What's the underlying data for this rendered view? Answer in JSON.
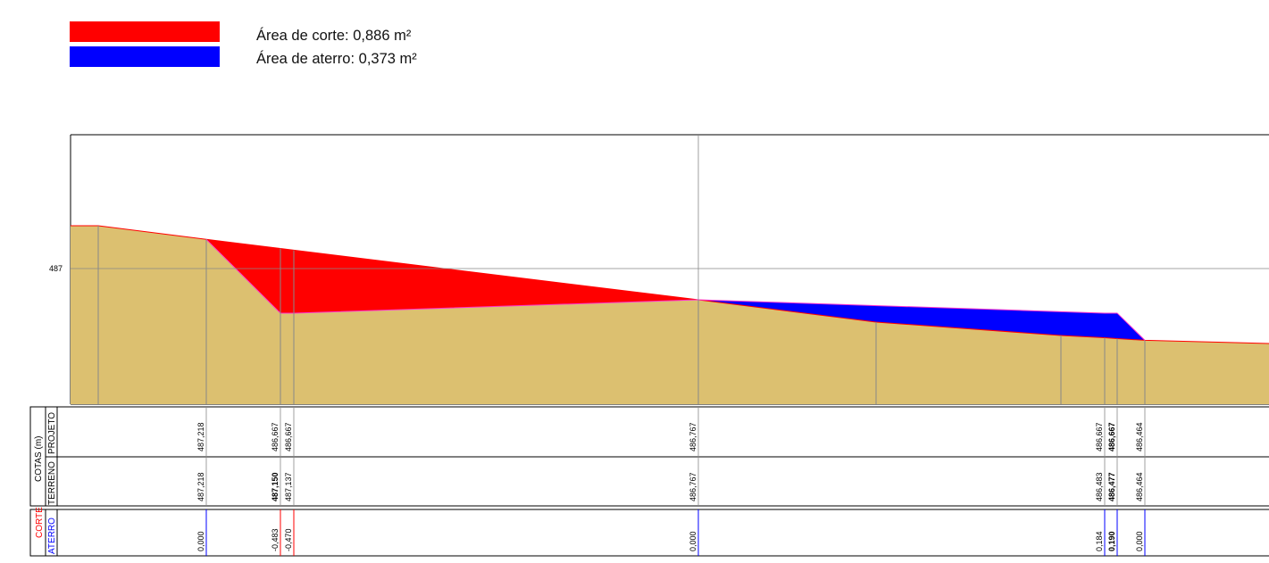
{
  "legend": {
    "corte_label": "Área de corte: 0,886 m²",
    "aterro_label": "Área de aterro: 0,373 m²",
    "corte_color": "#ff0000",
    "aterro_color": "#0000ff"
  },
  "table": {
    "header_group": "COTAS (m)",
    "row_projeto": "PROJETO",
    "row_terreno": "TERRENO",
    "row_corte": "CORTE",
    "row_aterro": "ATERRO"
  },
  "colors": {
    "terrain_fill": "#dcc070",
    "terrain_line": "#ff0000",
    "design_line": "#ff33cc",
    "grid": "#888888"
  },
  "chart_data": {
    "type": "area",
    "title": "",
    "xlabel": "",
    "ylabel": "",
    "ylim": [
      486.0,
      487.32
    ],
    "yticks": [
      "487"
    ],
    "grid": true,
    "legend_position": "top-left",
    "series": [
      {
        "name": "Área de corte: 0,886 m²",
        "color": "#ff0000"
      },
      {
        "name": "Área de aterro: 0,373 m²",
        "color": "#0000ff"
      }
    ],
    "stations": [
      {
        "projeto": "",
        "terreno": "",
        "corte_aterro": "",
        "kind": "none"
      },
      {
        "projeto": "487,218",
        "terreno": "487,218",
        "corte_aterro": "0,000",
        "kind": "aterro"
      },
      {
        "projeto": "486,667",
        "terreno": "487,150",
        "corte_aterro": "-0,483",
        "kind": "corte",
        "bold_terreno": true
      },
      {
        "projeto": "486,667",
        "terreno": "487,137",
        "corte_aterro": "-0,470",
        "kind": "corte"
      },
      {
        "projeto": "486,767",
        "terreno": "486,767",
        "corte_aterro": "0,000",
        "kind": "aterro"
      },
      {
        "projeto": "",
        "terreno": "",
        "corte_aterro": "",
        "kind": "none"
      },
      {
        "projeto": "",
        "terreno": "",
        "corte_aterro": "",
        "kind": "none"
      },
      {
        "projeto": "486,667",
        "terreno": "486,483",
        "corte_aterro": "0,184",
        "kind": "aterro"
      },
      {
        "projeto": "486,667",
        "terreno": "486,477",
        "corte_aterro": "0,190",
        "kind": "aterro",
        "bold_projeto": true,
        "bold_terreno": true,
        "bold_corte_aterro": true
      },
      {
        "projeto": "486,464",
        "terreno": "486,464",
        "corte_aterro": "0,000",
        "kind": "aterro"
      }
    ],
    "terrain_profile": [
      487.32,
      487.32,
      487.218,
      487.15,
      487.137,
      486.767,
      486.6,
      486.5,
      486.483,
      486.477,
      486.464,
      486.44
    ],
    "design_profile": [
      487.218,
      486.667,
      486.667,
      486.767,
      486.667,
      486.667,
      486.464
    ]
  }
}
